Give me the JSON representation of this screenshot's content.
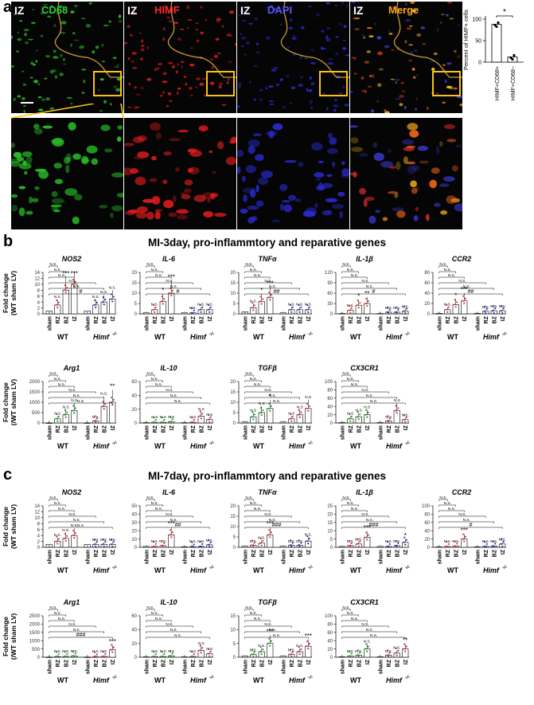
{
  "panel_labels": {
    "a": "a",
    "b": "b",
    "c": "c"
  },
  "panel_a": {
    "region": "IZ",
    "channels": [
      {
        "name": "CD68",
        "color": "#2fd42f"
      },
      {
        "name": "HIMF",
        "color": "#ff2a2a"
      },
      {
        "name": "DAPI",
        "color": "#5a5aff"
      },
      {
        "name": "Merge",
        "color": "#ffa318"
      }
    ],
    "quant": {
      "ylabel": "Percent of HIMF+ cells",
      "yticks": [
        "0",
        "50",
        "100"
      ],
      "significance": "*",
      "categories": [
        "HIMF+CD68+",
        "HIMF+CD68−"
      ]
    }
  },
  "panel_b": {
    "title": "MI-3day, pro-inflammtory and reparative genes"
  },
  "panel_c": {
    "title": "MI-7day, pro-inflammtory and reparative genes"
  },
  "common": {
    "ylabel_line1": "Fold change",
    "ylabel_line2": "(WT sham LV)",
    "ylabel_line2_alt": "(/WT sham LV)",
    "x_categories": [
      "sham",
      "RZ",
      "BZ",
      "IZ"
    ],
    "group_wt": "WT",
    "group_ko": "Himf",
    "ko_sup": "-/-",
    "ns": "N.S",
    "ns_dot": "N.S."
  },
  "chart_data": [
    {
      "type": "bar",
      "panel": "a",
      "title": "",
      "ylabel": "Percent of HIMF+ cells",
      "categories": [
        "HIMF+CD68+",
        "HIMF+CD68−"
      ],
      "values": [
        88,
        12
      ],
      "ylim": [
        0,
        100
      ]
    },
    {
      "type": "bar",
      "panel": "b",
      "gene": "NOS2",
      "yticks": [
        0,
        2,
        4,
        6,
        8,
        10,
        12,
        14
      ],
      "series": [
        {
          "name": "WT",
          "values": [
            1,
            3,
            8,
            10
          ]
        },
        {
          "name": "Himf-/-",
          "values": [
            1,
            3,
            4,
            5
          ]
        }
      ],
      "stars": [
        "",
        "N.S.",
        "***",
        "***",
        "",
        "N.S.",
        "N.S.",
        "N.S."
      ],
      "brackets": [
        "N.S.",
        "N.S.",
        "N.S.",
        "N.S.",
        "N.S.",
        "#"
      ]
    },
    {
      "type": "bar",
      "panel": "b",
      "gene": "IL-6",
      "yticks": [
        0,
        5,
        10,
        15,
        20
      ],
      "series": [
        {
          "name": "WT",
          "values": [
            0.5,
            2,
            6,
            10
          ]
        },
        {
          "name": "Himf-/-",
          "values": [
            0.5,
            0.5,
            2,
            2
          ]
        }
      ],
      "stars": [
        "",
        "N.S.",
        "*",
        "***",
        "",
        "N.S.",
        "N.S.",
        "N.S."
      ],
      "brackets": [
        "N.S.",
        "N.S.",
        "N.S.",
        "N.S.",
        "N.S.",
        "#"
      ]
    },
    {
      "type": "bar",
      "panel": "b",
      "gene": "TNFα",
      "yticks": [
        0,
        5,
        10,
        15,
        20
      ],
      "series": [
        {
          "name": "WT",
          "values": [
            1,
            3,
            6,
            8
          ]
        },
        {
          "name": "Himf-/-",
          "values": [
            0.5,
            2,
            2,
            2
          ]
        }
      ],
      "stars": [
        "",
        "N.S.",
        "*",
        "***",
        "",
        "N.S.",
        "N.S.",
        "N.S."
      ],
      "brackets": [
        "N.S.",
        "N.S.",
        "N.S.",
        "N.S.",
        "N.S.",
        "##"
      ]
    },
    {
      "type": "bar",
      "panel": "b",
      "gene": "IL-1β",
      "yticks": [
        0,
        30,
        60,
        90,
        120
      ],
      "series": [
        {
          "name": "WT",
          "values": [
            1,
            10,
            25,
            30
          ]
        },
        {
          "name": "Himf-/-",
          "values": [
            1,
            5,
            5,
            8
          ]
        }
      ],
      "stars": [
        "",
        "N.S.",
        "*",
        "**",
        "",
        "N.S.",
        "N.S.",
        "N.S."
      ],
      "brackets": [
        "N.S.",
        "N.S.",
        "N.S.",
        "N.S.",
        "N.S.",
        "#"
      ]
    },
    {
      "type": "bar",
      "panel": "b",
      "gene": "CCR2",
      "yticks": [
        0,
        20,
        40,
        60,
        80
      ],
      "series": [
        {
          "name": "WT",
          "values": [
            1,
            8,
            18,
            25
          ]
        },
        {
          "name": "Himf-/-",
          "values": [
            1,
            5,
            6,
            6
          ]
        }
      ],
      "stars": [
        "",
        "N.S.",
        "*",
        "***",
        "",
        "N.S.",
        "N.S.",
        "N.S."
      ],
      "brackets": [
        "N.S.",
        "N.S.",
        "N.S.",
        "N.S.",
        "N.S.",
        "##"
      ]
    },
    {
      "type": "bar",
      "panel": "b",
      "gene": "Arg1",
      "yticks": [
        0,
        500,
        1000,
        1500,
        2000
      ],
      "series": [
        {
          "name": "WT",
          "values": [
            5,
            200,
            400,
            600
          ]
        },
        {
          "name": "Himf-/-",
          "values": [
            5,
            100,
            800,
            1000
          ]
        }
      ],
      "stars": [
        "",
        "N.S",
        "N.S",
        "N.S",
        "",
        "N.S.",
        "N.S.",
        "**"
      ],
      "brackets": [
        "N.S.",
        "N.S.",
        "N.S.",
        "N.S.",
        "N.S.",
        "N.S."
      ]
    },
    {
      "type": "bar",
      "panel": "b",
      "gene": "IL-10",
      "yticks": [
        0,
        20,
        40,
        60
      ],
      "series": [
        {
          "name": "WT",
          "values": [
            0.5,
            1,
            1,
            2
          ]
        },
        {
          "name": "Himf-/-",
          "values": [
            0.5,
            1,
            10,
            5
          ]
        }
      ],
      "stars": [
        "",
        "N.S",
        "N.S",
        "N.S",
        "",
        "N.S",
        "N.S",
        "N.S"
      ],
      "brackets": [
        "N.S.",
        "N.S.",
        "N.S.",
        "N.S.",
        "N.S.",
        "N.S."
      ]
    },
    {
      "type": "bar",
      "panel": "b",
      "gene": "TGFβ",
      "yticks": [
        0,
        5,
        10,
        15,
        20
      ],
      "series": [
        {
          "name": "WT",
          "values": [
            0.5,
            3,
            5,
            7
          ]
        },
        {
          "name": "Himf-/-",
          "values": [
            0.5,
            2,
            4,
            7
          ]
        }
      ],
      "stars": [
        "",
        "N.S",
        "N.S",
        "*",
        "",
        "N.S",
        "N.S",
        "N.S"
      ],
      "brackets": [
        "N.S.",
        "N.S.",
        "N.S.",
        "N.S.",
        "N.S.",
        "N.S."
      ]
    },
    {
      "type": "bar",
      "panel": "b",
      "gene": "CX3CR1",
      "yticks": [
        0,
        20,
        40,
        60,
        80,
        100
      ],
      "series": [
        {
          "name": "WT",
          "values": [
            1,
            10,
            15,
            20
          ]
        },
        {
          "name": "Himf-/-",
          "values": [
            1,
            5,
            30,
            8
          ]
        }
      ],
      "stars": [
        "",
        "N.S",
        "N.S",
        "N.S",
        "",
        "N.S",
        "N.S",
        "N.S."
      ],
      "brackets": [
        "N.S.",
        "N.S.",
        "N.S.",
        "N.S.",
        "N.S.",
        "N.S."
      ]
    },
    {
      "type": "bar",
      "panel": "c",
      "gene": "NOS2",
      "yticks": [
        0,
        2,
        4,
        6,
        8,
        10,
        12,
        14
      ],
      "series": [
        {
          "name": "WT",
          "values": [
            1,
            2,
            3,
            4
          ]
        },
        {
          "name": "Himf-/-",
          "values": [
            1,
            1,
            1,
            1
          ]
        }
      ],
      "stars": [
        "",
        "N.S.",
        "N.S.",
        "N.S.",
        "",
        "N.S.",
        "N.S.",
        "N.S."
      ],
      "brackets": [
        "N.S.",
        "N.S.",
        "N.S.",
        "N.S.",
        "N.S.",
        "N.S."
      ]
    },
    {
      "type": "bar",
      "panel": "c",
      "gene": "IL-6",
      "yticks": [
        0,
        10,
        20,
        30,
        40,
        50
      ],
      "series": [
        {
          "name": "WT",
          "values": [
            1,
            1,
            2,
            15
          ]
        },
        {
          "name": "Himf-/-",
          "values": [
            0.5,
            0.5,
            1,
            3
          ]
        }
      ],
      "stars": [
        "",
        "N.S.",
        "N.S.",
        "***",
        "",
        "N.S.",
        "N.S.",
        "N.S."
      ],
      "brackets": [
        "N.S.",
        "N.S.",
        "N.S.",
        "N.S.",
        "N.S.",
        "##"
      ]
    },
    {
      "type": "bar",
      "panel": "c",
      "gene": "TNFα",
      "yticks": [
        0,
        5,
        10,
        15,
        20
      ],
      "series": [
        {
          "name": "WT",
          "values": [
            0.5,
            1,
            2,
            6
          ]
        },
        {
          "name": "Himf-/-",
          "values": [
            0.5,
            1,
            1,
            3
          ]
        }
      ],
      "stars": [
        "",
        "N.S.",
        "N.S.",
        "***",
        "",
        "N.S.",
        "N.S.",
        "N.S."
      ],
      "brackets": [
        "N.S.",
        "N.S.",
        "N.S.",
        "N.S.",
        "N.S.",
        "###"
      ]
    },
    {
      "type": "bar",
      "panel": "c",
      "gene": "IL-1β",
      "yticks": [
        0,
        5,
        10,
        15,
        20,
        25
      ],
      "series": [
        {
          "name": "WT",
          "values": [
            0.5,
            1,
            2,
            6
          ]
        },
        {
          "name": "Himf-/-",
          "values": [
            0.5,
            0.5,
            1,
            3
          ]
        }
      ],
      "stars": [
        "",
        "N.S.",
        "N.S.",
        "***",
        "",
        "N.S.",
        "N.S.",
        "*"
      ],
      "brackets": [
        "N.S.",
        "N.S.",
        "N.S.",
        "N.S.",
        "N.S.",
        "###"
      ]
    },
    {
      "type": "bar",
      "panel": "c",
      "gene": "CCR2",
      "yticks": [
        0,
        20,
        40,
        60,
        80,
        100
      ],
      "series": [
        {
          "name": "WT",
          "values": [
            1,
            2,
            3,
            20
          ]
        },
        {
          "name": "Himf-/-",
          "values": [
            1,
            2,
            3,
            8
          ]
        }
      ],
      "stars": [
        "",
        "N.S.",
        "N.S.",
        "***",
        "",
        "N.S.",
        "N.S.",
        "N.S."
      ],
      "brackets": [
        "N.S.",
        "N.S.",
        "N.S.",
        "N.S.",
        "N.S.",
        "#"
      ]
    },
    {
      "type": "bar",
      "panel": "c",
      "gene": "Arg1",
      "yticks": [
        0,
        500,
        1000,
        1500,
        2000,
        2500
      ],
      "series": [
        {
          "name": "WT",
          "values": [
            5,
            30,
            50,
            80
          ]
        },
        {
          "name": "Himf-/-",
          "values": [
            5,
            20,
            50,
            450
          ]
        }
      ],
      "stars": [
        "",
        "N.S.",
        "N.S.",
        "N.S.",
        "",
        "N.S.",
        "N.S.",
        "***"
      ],
      "brackets": [
        "N.S.",
        "N.S.",
        "N.S.",
        "N.S.",
        "N.S.",
        "###"
      ]
    },
    {
      "type": "bar",
      "panel": "c",
      "gene": "IL-10",
      "yticks": [
        0,
        20,
        40,
        60
      ],
      "series": [
        {
          "name": "WT",
          "values": [
            0.5,
            1,
            1,
            2
          ]
        },
        {
          "name": "Himf-/-",
          "values": [
            0.5,
            1,
            10,
            5
          ]
        }
      ],
      "stars": [
        "",
        "N.S",
        "N.S",
        "N.S",
        "",
        "N.S",
        "N.S",
        "N.S"
      ],
      "brackets": [
        "N.S.",
        "N.S.",
        "N.S.",
        "N.S.",
        "N.S.",
        "N.S."
      ]
    },
    {
      "type": "bar",
      "panel": "c",
      "gene": "TGFβ",
      "yticks": [
        0,
        5,
        10,
        15
      ],
      "series": [
        {
          "name": "WT",
          "values": [
            0.5,
            1,
            2,
            5
          ]
        },
        {
          "name": "Himf-/-",
          "values": [
            0.5,
            1,
            2,
            4
          ]
        }
      ],
      "stars": [
        "",
        "N.S.",
        "N.S.",
        "***",
        "",
        "N.S.",
        "N.S.",
        "***"
      ],
      "brackets": [
        "N.S.",
        "N.S.",
        "N.S.",
        "N.S.",
        "N.S.",
        "N.S."
      ]
    },
    {
      "type": "bar",
      "panel": "c",
      "gene": "CX3CR1",
      "yticks": [
        0,
        20,
        40,
        60,
        80,
        100
      ],
      "series": [
        {
          "name": "WT",
          "values": [
            1,
            3,
            5,
            20
          ]
        },
        {
          "name": "Himf-/-",
          "values": [
            1,
            5,
            10,
            20
          ]
        }
      ],
      "stars": [
        "",
        "N.S.",
        "N.S.",
        "N.S.",
        "",
        "N.S.",
        "N.S.",
        "**"
      ],
      "brackets": [
        "N.S.",
        "N.S.",
        "N.S.",
        "N.S.",
        "N.S.",
        "N.S."
      ]
    }
  ]
}
